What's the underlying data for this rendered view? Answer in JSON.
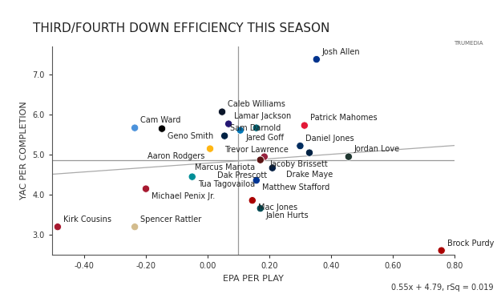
{
  "chart_data": {
    "type": "scatter",
    "title": "THIRD/FOURTH DOWN EFFICIENCY THIS SEASON",
    "x_label": "EPA PER PLAY",
    "y_label": "YAC PER COMPLETION",
    "logo": "TRUMEDIA",
    "labels": [
      "Josh Allen",
      "Brock Purdy",
      "Kirk Cousins",
      "Spencer Rattler",
      "Cam Ward",
      "Geno Smith",
      "Caleb Williams",
      "Lamar Jackson",
      "Jared Goff",
      "Trevor Lawrence",
      "Patrick Mahomes",
      "Sam Darnold",
      "Aaron Rodgers",
      "Jacoby Brissett",
      "Daniel Jones",
      "Drake Maye",
      "Jordan Love",
      "Marcus Mariota",
      "Dak Prescott",
      "Matthew Stafford",
      "Mac Jones",
      "Jalen Hurts",
      "Tua Tagovailoa",
      "Michael Penix Jr."
    ],
    "x": [
      0.353,
      0.758,
      -0.486,
      -0.236,
      -0.236,
      -0.148,
      0.047,
      0.068,
      0.106,
      0.158,
      0.314,
      0.055,
      0.008,
      0.184,
      0.3,
      0.33,
      0.457,
      0.171,
      0.21,
      0.158,
      0.145,
      0.171,
      -0.05,
      -0.2
    ],
    "values": [
      7.38,
      2.61,
      3.2,
      3.2,
      5.67,
      5.65,
      6.07,
      5.77,
      5.61,
      5.67,
      5.73,
      5.47,
      5.15,
      4.95,
      5.22,
      5.05,
      4.95,
      4.87,
      4.67,
      4.36,
      3.86,
      3.66,
      4.45,
      4.15
    ],
    "colors": [
      "#00338D",
      "#AA0000",
      "#A71930",
      "#D3BC8D",
      "#4B92DB",
      "#000000",
      "#0B162A",
      "#241773",
      "#0076B6",
      "#006778",
      "#E31837",
      "#002244",
      "#FFB612",
      "#97233F",
      "#002C5F",
      "#002244",
      "#203731",
      "#5A1414",
      "#041E42",
      "#003594",
      "#AA0000",
      "#004C54",
      "#008E97",
      "#A71930"
    ],
    "marker": "o",
    "x_average": 0.1,
    "y_average": 4.87,
    "trend": {
      "slope": 0.55,
      "intercept": 4.79,
      "label": "0.55x + 4.79, rSq = 0.019"
    },
    "xlim": [
      -0.504,
      0.8
    ],
    "ylim": [
      2.5,
      7.7
    ],
    "xticks": [
      {
        "value": -0.4,
        "label": "-0.40"
      },
      {
        "value": -0.2,
        "label": "-0.20"
      },
      {
        "value": 0.0,
        "label": "0.00"
      },
      {
        "value": 0.2,
        "label": "0.20"
      },
      {
        "value": 0.4,
        "label": "0.40"
      },
      {
        "value": 0.6,
        "label": "0.60"
      },
      {
        "value": 0.8,
        "label": "0.80"
      }
    ],
    "yticks": [
      {
        "value": 3,
        "label": "3.0"
      },
      {
        "value": 4,
        "label": "4.0"
      },
      {
        "value": 5,
        "label": "5.0"
      },
      {
        "value": 6,
        "label": "6.0"
      },
      {
        "value": 7,
        "label": "7.0"
      }
    ],
    "grid": false
  }
}
